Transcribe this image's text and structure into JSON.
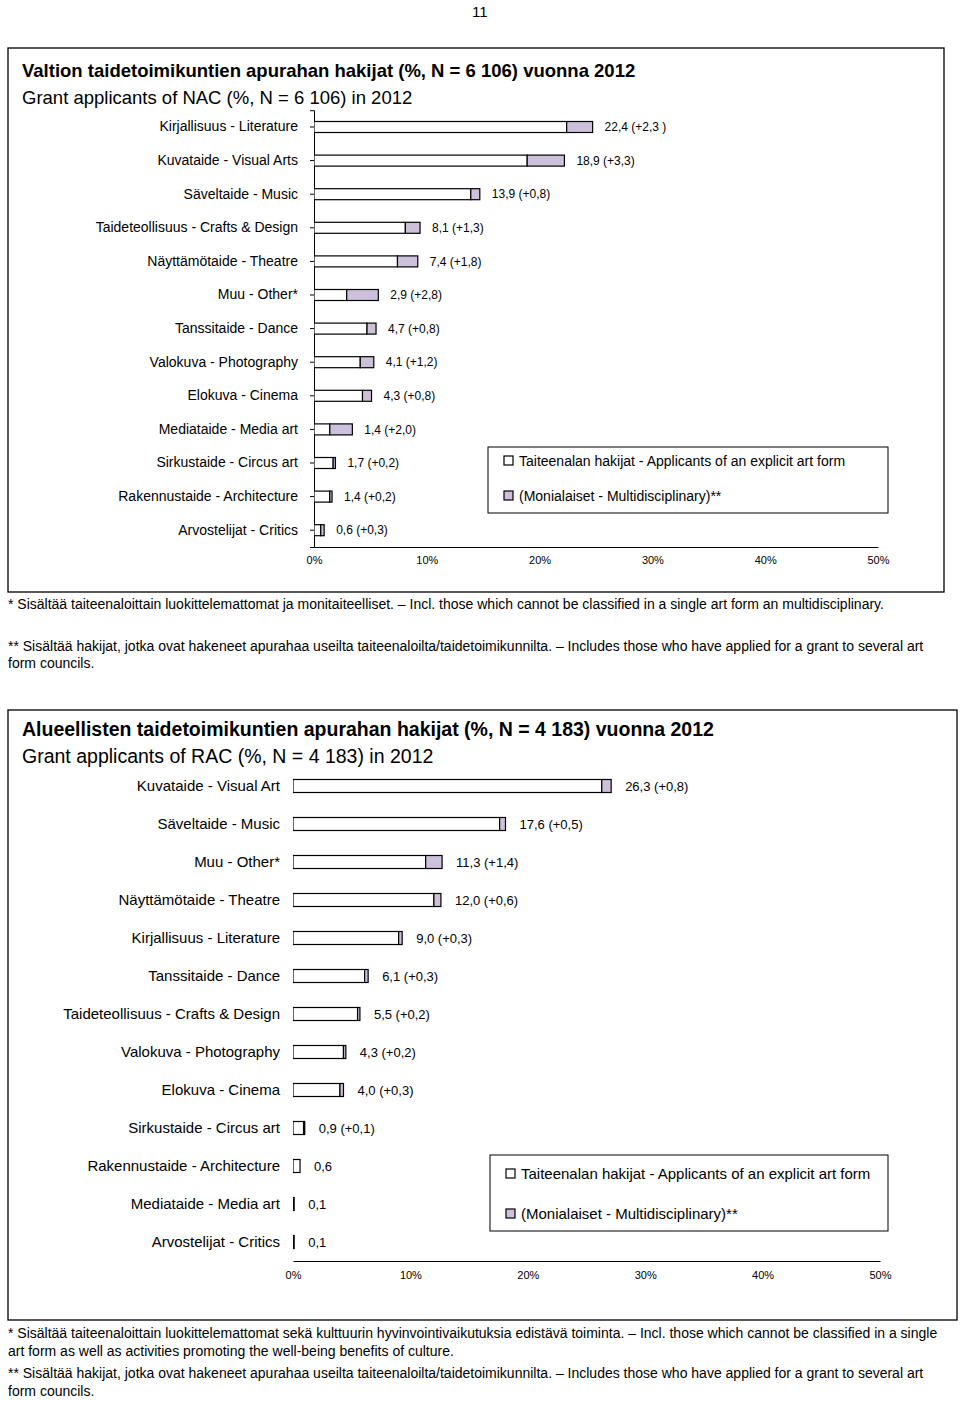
{
  "page_number": "11",
  "chart_data": [
    {
      "type": "bar",
      "orientation": "horizontal",
      "stacked": true,
      "legend": "lower right",
      "title": "Valtion taidetoimikuntien apurahan hakijat (%, N = 6 106) vuonna 2012",
      "subtitle": "Grant applicants of NAC (%, N = 6 106) in 2012",
      "categories": [
        "Kirjallisuus - Literature",
        "Kuvataide - Visual Arts",
        "Säveltaide - Music",
        "Taideteollisuus - Crafts & Design",
        "Näyttämötaide - Theatre",
        "Muu - Other*",
        "Tanssitaide - Dance",
        "Valokuva - Photography",
        "Elokuva - Cinema",
        "Mediataide - Media art",
        "Sirkustaide - Circus art",
        "Rakennustaide - Architecture",
        "Arvostelijat - Critics"
      ],
      "series": [
        {
          "name": "Taiteenalan hakijat - Applicants of an explicit art form",
          "color": "#ffffff",
          "values": [
            22.4,
            18.9,
            13.9,
            8.1,
            7.4,
            2.9,
            4.7,
            4.1,
            4.3,
            1.4,
            1.7,
            1.4,
            0.6
          ]
        },
        {
          "name": "(Monialaiset - Multidisciplinary)**",
          "color": "#cdc0da",
          "values": [
            2.3,
            3.3,
            0.8,
            1.3,
            1.8,
            2.8,
            0.8,
            1.2,
            0.8,
            2.0,
            0.2,
            0.2,
            0.3
          ]
        }
      ],
      "annotations": [
        "22,4 (+2,3 )",
        "18,9 (+3,3)",
        "13,9 (+0,8)",
        "8,1 (+1,3)",
        "7,4 (+1,8)",
        "2,9 (+2,8)",
        "4,7 (+0,8)",
        "4,1 (+1,2)",
        "4,3 (+0,8)",
        "1,4 (+2,0)",
        "1,7 (+0,2)",
        "1,4 (+0,2)",
        "0,6 (+0,3)"
      ],
      "xlim": [
        0,
        50
      ],
      "xticks": [
        {
          "value": 0,
          "label": "0%"
        },
        {
          "value": 10,
          "label": "10%"
        },
        {
          "value": 20,
          "label": "20%"
        },
        {
          "value": 30,
          "label": "30%"
        },
        {
          "value": 40,
          "label": "40%"
        },
        {
          "value": 50,
          "label": "50%"
        }
      ],
      "notes": [
        "* Sisältää taiteenaloittain luokittelemattomat ja monitaiteelliset. – Incl. those which cannot be classified in a single art form an multidisciplinary.",
        "** Sisältää hakijat, jotka ovat hakeneet apurahaa useilta taiteenaloilta/taidetoimikunnilta. – Includes those who have applied for a grant to several art form councils."
      ]
    },
    {
      "type": "bar",
      "orientation": "horizontal",
      "stacked": true,
      "legend": "lower right",
      "title": "Alueellisten taidetoimikuntien apurahan hakijat (%, N = 4 183) vuonna 2012",
      "subtitle": "Grant applicants of RAC (%, N = 4 183) in 2012",
      "categories": [
        "Kuvataide - Visual Art",
        "Säveltaide - Music",
        "Muu - Other*",
        "Näyttämötaide - Theatre",
        "Kirjallisuus - Literature",
        "Tanssitaide - Dance",
        "Taideteollisuus - Crafts & Design",
        "Valokuva - Photography",
        "Elokuva - Cinema",
        "Sirkustaide - Circus art",
        "Rakennustaide - Architecture",
        "Mediataide - Media art",
        "Arvostelijat - Critics"
      ],
      "series": [
        {
          "name": "Taiteenalan hakijat - Applicants of an explicit art form",
          "color": "#ffffff",
          "values": [
            26.3,
            17.6,
            11.3,
            12.0,
            9.0,
            6.1,
            5.5,
            4.3,
            4.0,
            0.9,
            0.6,
            0.1,
            0.1
          ]
        },
        {
          "name": "(Monialaiset - Multidisciplinary)**",
          "color": "#cdc0da",
          "values": [
            0.8,
            0.5,
            1.4,
            0.6,
            0.3,
            0.3,
            0.2,
            0.2,
            0.3,
            0.1,
            0,
            0,
            0
          ]
        }
      ],
      "annotations": [
        "26,3 (+0,8)",
        "17,6 (+0,5)",
        "11,3 (+1,4)",
        "12,0 (+0,6)",
        "9,0 (+0,3)",
        "6,1 (+0,3)",
        "5,5 (+0,2)",
        "4,3 (+0,2)",
        "4,0 (+0,3)",
        "0,9 (+0,1)",
        "0,6",
        "0,1",
        "0,1"
      ],
      "xlim": [
        0,
        50
      ],
      "xticks": [
        {
          "value": 0,
          "label": "0%"
        },
        {
          "value": 10,
          "label": "10%"
        },
        {
          "value": 20,
          "label": "20%"
        },
        {
          "value": 30,
          "label": "30%"
        },
        {
          "value": 40,
          "label": "40%"
        },
        {
          "value": 50,
          "label": "50%"
        }
      ],
      "notes": [
        "* Sisältää taiteenaloittain luokittelemattomat sekä kulttuurin hyvinvointivaikutuksia edistävä toiminta. – Incl. those which cannot be classified in a single art form as well as activities promoting the well-being benefits of culture.",
        "** Sisältää hakijat, jotka ovat hakeneet apurahaa useilta taiteenaloilta/taidetoimikunnilta. – Includes those who have applied for a grant to several art form councils."
      ]
    }
  ]
}
